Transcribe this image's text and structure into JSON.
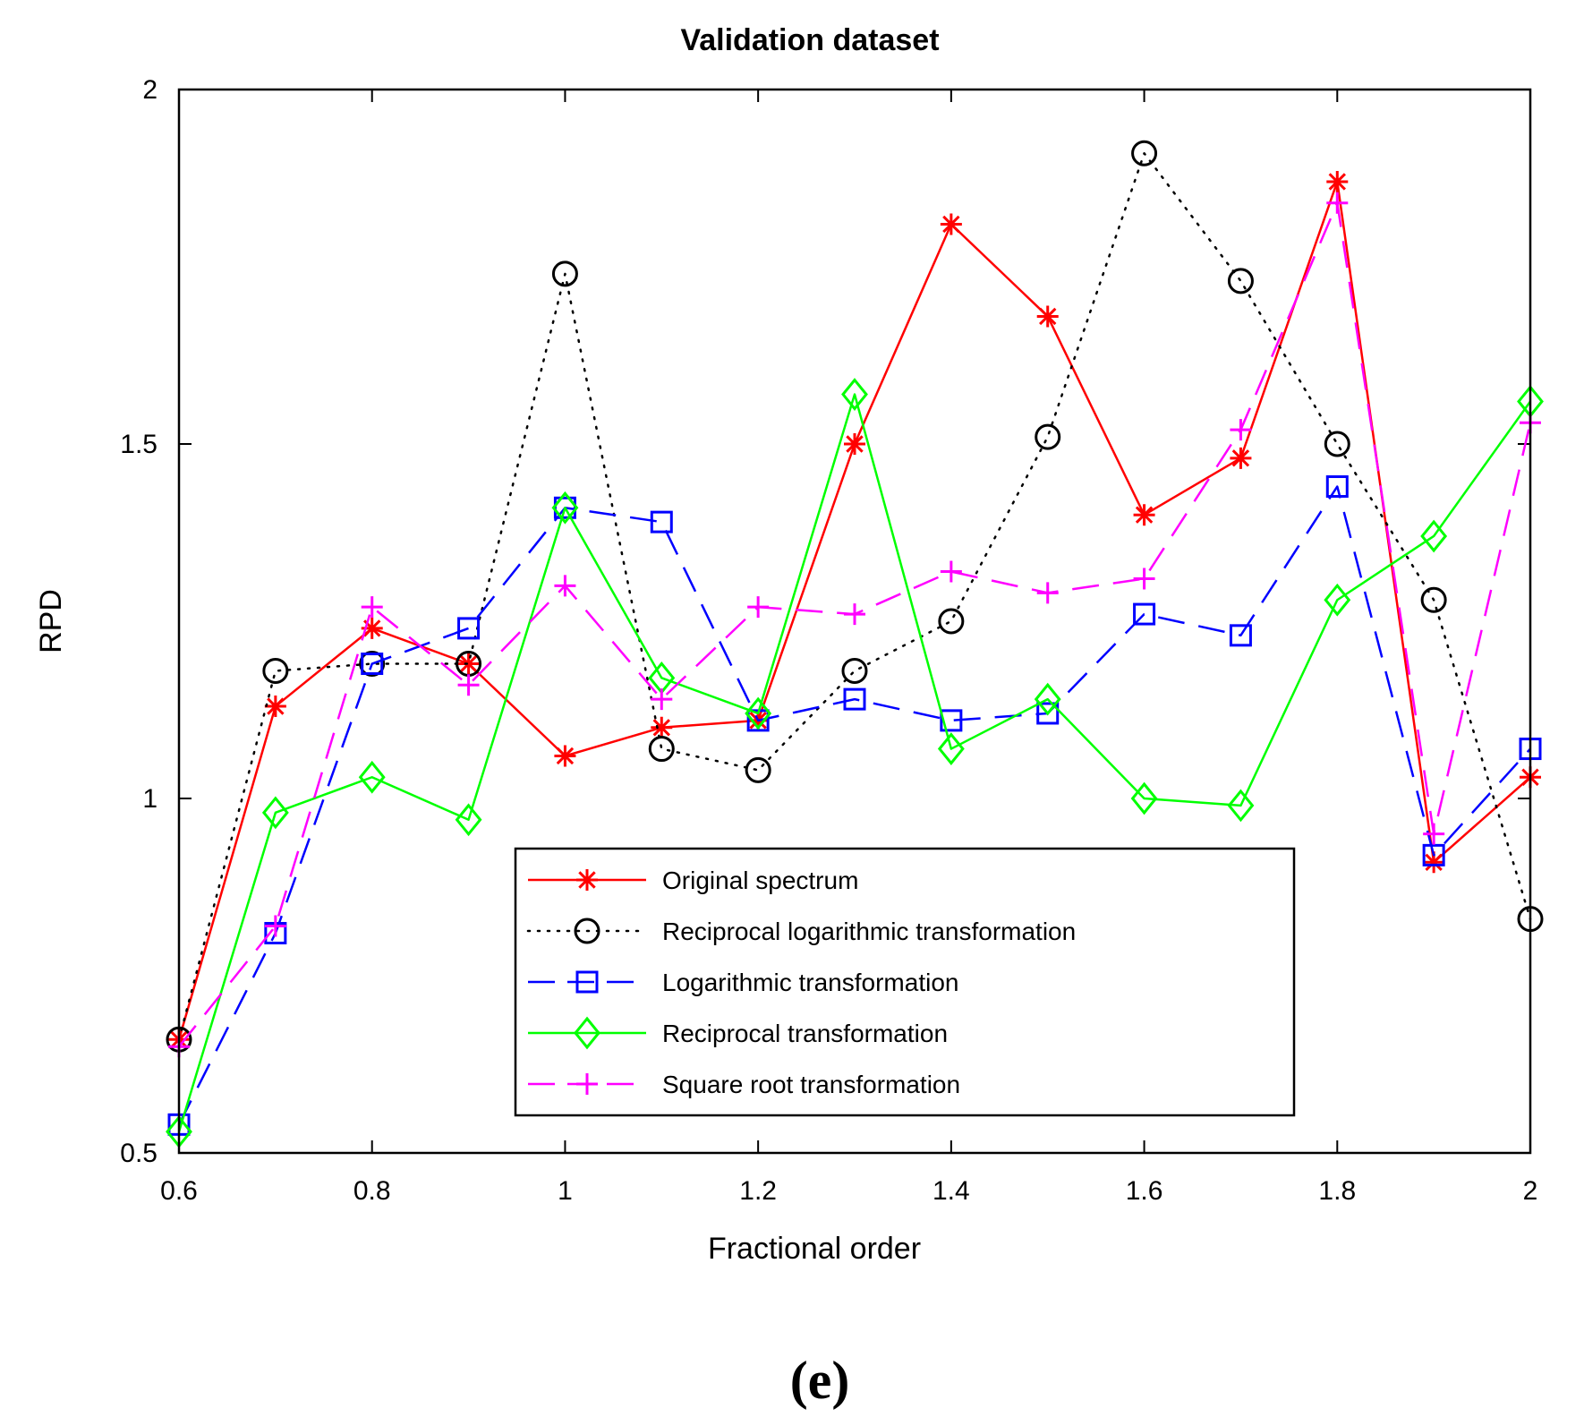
{
  "chart_data": {
    "type": "line",
    "title": "Validation dataset",
    "xlabel": "Fractional order",
    "ylabel": "RPD",
    "xlim": [
      0.6,
      2
    ],
    "ylim": [
      0.5,
      2
    ],
    "xticks": [
      "0.6",
      "0.8",
      "1",
      "1.2",
      "1.4",
      "1.6",
      "1.8",
      "2"
    ],
    "yticks": [
      "0.5",
      "1",
      "1.5",
      "2"
    ],
    "x": [
      0.6,
      0.7,
      0.8,
      0.9,
      1.0,
      1.1,
      1.2,
      1.3,
      1.4,
      1.5,
      1.6,
      1.7,
      1.8,
      1.9,
      2.0
    ],
    "legend_position": "lower-center",
    "series": [
      {
        "name": "Original spectrum",
        "color": "#ff0000",
        "marker": "asterisk",
        "dash": "solid",
        "values": [
          0.66,
          1.13,
          1.24,
          1.19,
          1.06,
          1.1,
          1.11,
          1.5,
          1.81,
          1.68,
          1.4,
          1.48,
          1.87,
          0.91,
          1.03
        ]
      },
      {
        "name": "Reciprocal logarithmic transformation",
        "color": "#000000",
        "marker": "circle",
        "dash": "dotted",
        "values": [
          0.66,
          1.18,
          1.19,
          1.19,
          1.74,
          1.07,
          1.04,
          1.18,
          1.25,
          1.51,
          1.91,
          1.73,
          1.5,
          1.28,
          0.83
        ]
      },
      {
        "name": "Logarithmic transformation",
        "color": "#0000ff",
        "marker": "square",
        "dash": "dashed",
        "values": [
          0.54,
          0.81,
          1.19,
          1.24,
          1.41,
          1.39,
          1.11,
          1.14,
          1.11,
          1.12,
          1.26,
          1.23,
          1.44,
          0.92,
          1.07
        ]
      },
      {
        "name": "Reciprocal transformation",
        "color": "#00ff00",
        "marker": "diamond",
        "dash": "solid",
        "values": [
          0.53,
          0.98,
          1.03,
          0.97,
          1.41,
          1.17,
          1.12,
          1.57,
          1.07,
          1.14,
          1.0,
          0.99,
          1.28,
          1.37,
          1.56
        ]
      },
      {
        "name": "Square root transformation",
        "color": "#ff00ff",
        "marker": "plus",
        "dash": "dashed",
        "values": [
          0.65,
          0.82,
          1.27,
          1.16,
          1.3,
          1.14,
          1.27,
          1.26,
          1.32,
          1.29,
          1.31,
          1.52,
          1.84,
          0.95,
          1.53
        ]
      }
    ]
  },
  "panel_label": "(e)"
}
